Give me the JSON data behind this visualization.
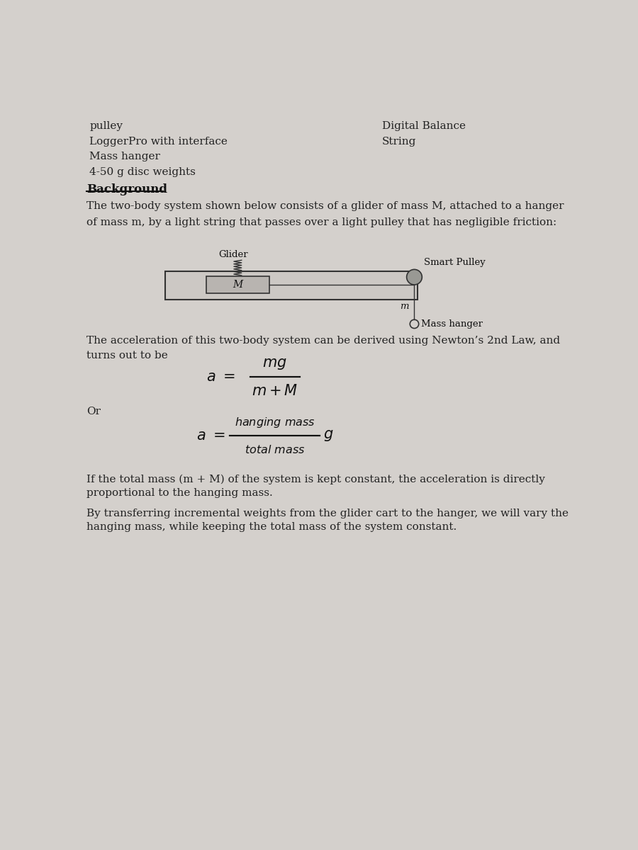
{
  "bg_color": "#d4d0cc",
  "page_color": "#e8e4e0",
  "top_left_items": [
    "pulley",
    "LoggerPro with interface",
    "Mass hanger",
    "4-50 g disc weights"
  ],
  "top_right_items": [
    "Digital Balance",
    "String"
  ],
  "background_title": "Background",
  "background_text1": "The two-body system shown below consists of a glider of mass M, attached to a hanger",
  "background_text2": "of mass m, by a light string that passes over a light pulley that has negligible friction:",
  "glider_label": "Glider",
  "glider_mass_label": "M",
  "pulley_label": "Smart Pulley",
  "hanger_mass_label": "m",
  "hanger_label": "Mass hanger",
  "accel_text1": "The acceleration of this two-body system can be derived using Newton’s 2nd Law, and",
  "accel_text2": "turns out to be",
  "or_text": "Or",
  "proportional_text": "If the total mass (m + M) of the system is kept constant, the acceleration is directly\nproportional to the hanging mass.",
  "transfer_text": "By transferring incremental weights from the glider cart to the hanger, we will vary the\nhanging mass, while keeping the total mass of the system constant."
}
